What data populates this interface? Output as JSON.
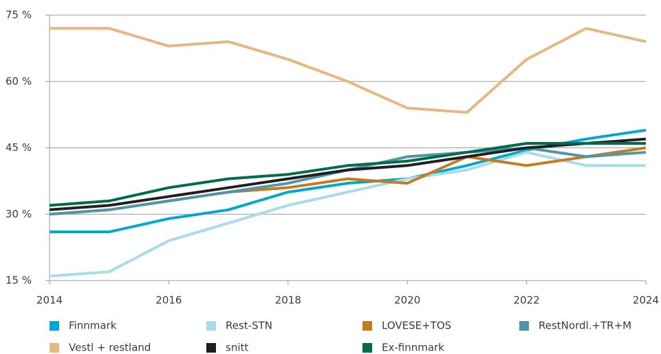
{
  "chart_data": {
    "type": "line",
    "x": [
      2014,
      2015,
      2016,
      2017,
      2018,
      2019,
      2020,
      2021,
      2022,
      2023,
      2024
    ],
    "xlim": [
      2014,
      2024
    ],
    "xticks": [
      2014,
      2016,
      2018,
      2020,
      2022,
      2024
    ],
    "ylim": [
      15,
      75
    ],
    "yticks": [
      {
        "value": 15,
        "label": "15 %"
      },
      {
        "value": 30,
        "label": "30 %"
      },
      {
        "value": 45,
        "label": "45 %"
      },
      {
        "value": 60,
        "label": "60 %"
      },
      {
        "value": 75,
        "label": "75 %"
      }
    ],
    "grid": true,
    "legend": "bottom",
    "series": [
      {
        "name": "Finnmark",
        "color": "#00a9ce",
        "values": [
          26,
          26,
          29,
          31,
          35,
          37,
          38,
          41,
          44.5,
          47,
          49
        ]
      },
      {
        "name": "Rest-STN",
        "color": "#a9dbe8",
        "values": [
          16,
          17,
          24,
          28,
          32,
          35,
          38,
          40,
          44,
          41,
          41
        ]
      },
      {
        "name": "LOVESE+TOS",
        "color": "#c77b1f",
        "values": [
          30,
          31,
          33,
          35,
          36,
          38,
          37,
          43,
          41,
          43,
          45
        ]
      },
      {
        "name": "RestNordl.+TR+M",
        "color": "#4f97a8",
        "values": [
          30,
          31,
          33,
          35,
          37,
          40,
          43,
          44,
          45,
          43,
          44
        ]
      },
      {
        "name": "Vestl + restland",
        "color": "#e5b781",
        "values": [
          72,
          72,
          68,
          69,
          65,
          60,
          54,
          53,
          65,
          72,
          69
        ]
      },
      {
        "name": "snitt",
        "color": "#231f20",
        "values": [
          31,
          32,
          34,
          36,
          38,
          40,
          41,
          43,
          45,
          46,
          47
        ]
      },
      {
        "name": "Ex-finnmark",
        "color": "#006b4f",
        "values": [
          32,
          33,
          36,
          38,
          39,
          41,
          42,
          44,
          46,
          46,
          46
        ]
      }
    ]
  }
}
